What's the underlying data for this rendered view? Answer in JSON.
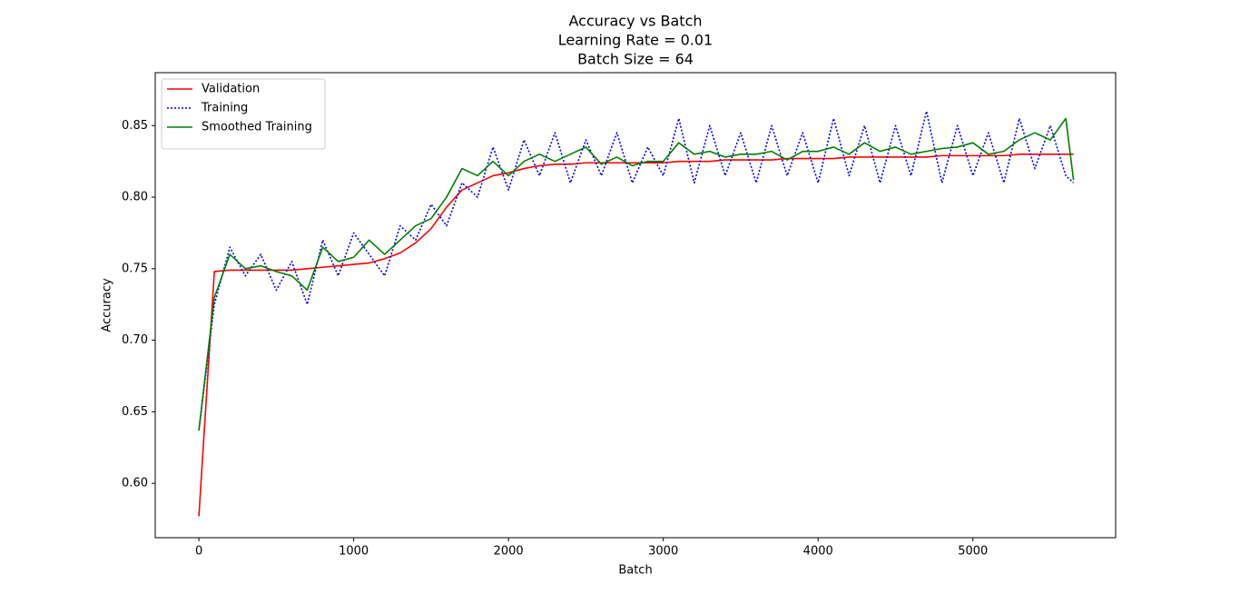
{
  "chart_data": {
    "type": "line",
    "title": [
      "Accuracy vs Batch",
      "Learning Rate = 0.01",
      "Batch Size = 64"
    ],
    "xlabel": "Batch",
    "ylabel": "Accuracy",
    "x": [
      0,
      100,
      200,
      300,
      400,
      500,
      600,
      700,
      800,
      900,
      1000,
      1100,
      1200,
      1300,
      1400,
      1500,
      1600,
      1700,
      1800,
      1900,
      2000,
      2100,
      2200,
      2300,
      2400,
      2500,
      2600,
      2700,
      2800,
      2900,
      3000,
      3100,
      3200,
      3300,
      3400,
      3500,
      3600,
      3700,
      3800,
      3900,
      4000,
      4100,
      4200,
      4300,
      4400,
      4500,
      4600,
      4700,
      4800,
      4900,
      5000,
      5100,
      5200,
      5300,
      5400,
      5500,
      5600,
      5650
    ],
    "series": [
      {
        "name": "Validation",
        "color": "#ff0000",
        "linestyle": "solid",
        "values": [
          0.577,
          0.748,
          0.749,
          0.749,
          0.749,
          0.749,
          0.749,
          0.75,
          0.751,
          0.752,
          0.753,
          0.754,
          0.757,
          0.761,
          0.768,
          0.778,
          0.793,
          0.805,
          0.81,
          0.815,
          0.817,
          0.82,
          0.822,
          0.823,
          0.823,
          0.824,
          0.824,
          0.824,
          0.824,
          0.824,
          0.824,
          0.825,
          0.825,
          0.825,
          0.826,
          0.826,
          0.826,
          0.826,
          0.827,
          0.827,
          0.827,
          0.827,
          0.828,
          0.828,
          0.828,
          0.828,
          0.828,
          0.828,
          0.829,
          0.829,
          0.829,
          0.829,
          0.829,
          0.83,
          0.83,
          0.83,
          0.83,
          0.83
        ]
      },
      {
        "name": "Training",
        "color": "#0000ff",
        "linestyle": "dotted",
        "values": [
          0.637,
          0.725,
          0.765,
          0.745,
          0.76,
          0.735,
          0.755,
          0.725,
          0.77,
          0.745,
          0.775,
          0.76,
          0.745,
          0.78,
          0.77,
          0.795,
          0.78,
          0.81,
          0.8,
          0.835,
          0.805,
          0.84,
          0.815,
          0.845,
          0.81,
          0.84,
          0.815,
          0.845,
          0.81,
          0.835,
          0.815,
          0.855,
          0.81,
          0.85,
          0.815,
          0.845,
          0.81,
          0.85,
          0.815,
          0.845,
          0.81,
          0.855,
          0.815,
          0.85,
          0.81,
          0.85,
          0.815,
          0.86,
          0.81,
          0.85,
          0.815,
          0.845,
          0.81,
          0.855,
          0.82,
          0.85,
          0.815,
          0.81
        ]
      },
      {
        "name": "Smoothed Training",
        "color": "#008000",
        "linestyle": "solid",
        "values": [
          0.637,
          0.73,
          0.76,
          0.75,
          0.752,
          0.748,
          0.745,
          0.735,
          0.765,
          0.755,
          0.758,
          0.77,
          0.76,
          0.77,
          0.78,
          0.785,
          0.8,
          0.82,
          0.815,
          0.825,
          0.815,
          0.825,
          0.83,
          0.825,
          0.83,
          0.835,
          0.823,
          0.828,
          0.822,
          0.825,
          0.825,
          0.838,
          0.83,
          0.832,
          0.828,
          0.83,
          0.83,
          0.832,
          0.826,
          0.832,
          0.832,
          0.835,
          0.83,
          0.838,
          0.832,
          0.835,
          0.83,
          0.832,
          0.834,
          0.835,
          0.838,
          0.83,
          0.832,
          0.84,
          0.845,
          0.84,
          0.855,
          0.812
        ]
      }
    ],
    "xlim": [
      -282,
      5922
    ],
    "ylim": [
      0.562,
      0.887
    ],
    "xticks": [
      0,
      1000,
      2000,
      3000,
      4000,
      5000
    ],
    "yticks": [
      {
        "value": 0.6,
        "label": "0.60"
      },
      0.65,
      {
        "value": 0.7,
        "label": "0.70"
      },
      0.75,
      {
        "value": 0.8,
        "label": "0.80"
      },
      0.85
    ],
    "legend": "upper left"
  }
}
